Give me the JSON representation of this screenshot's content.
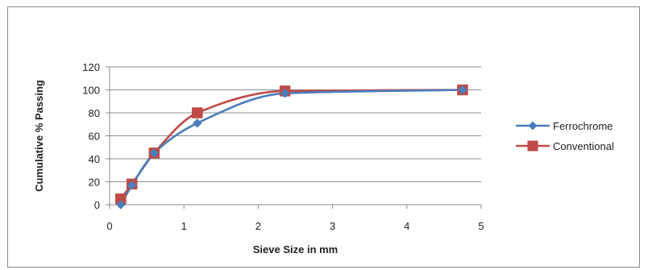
{
  "chart_data": {
    "type": "line",
    "title": "",
    "xlabel": "Sieve Size in mm",
    "ylabel": "Cumulative % Passing",
    "xlim": [
      0,
      5
    ],
    "ylim": [
      0,
      120
    ],
    "xticks": [
      "0",
      "1",
      "2",
      "3",
      "4",
      "5"
    ],
    "yticks": [
      "0",
      "20",
      "40",
      "60",
      "80",
      "100",
      "120"
    ],
    "grid": "horizontal",
    "smooth": true,
    "legend_position": "right",
    "series": [
      {
        "name": "Ferrochrome",
        "color": "#4a7ebb",
        "marker": "diamond",
        "points": [
          {
            "x": 0.15,
            "y": 0
          },
          {
            "x": 0.3,
            "y": 17
          },
          {
            "x": 0.6,
            "y": 45
          },
          {
            "x": 1.18,
            "y": 71
          },
          {
            "x": 2.36,
            "y": 97
          },
          {
            "x": 4.75,
            "y": 100
          }
        ]
      },
      {
        "name": "Conventional",
        "color": "#be4b48",
        "marker": "square",
        "points": [
          {
            "x": 0.15,
            "y": 5
          },
          {
            "x": 0.3,
            "y": 18
          },
          {
            "x": 0.6,
            "y": 45
          },
          {
            "x": 1.18,
            "y": 80
          },
          {
            "x": 2.36,
            "y": 99
          },
          {
            "x": 4.75,
            "y": 100
          }
        ]
      }
    ]
  }
}
